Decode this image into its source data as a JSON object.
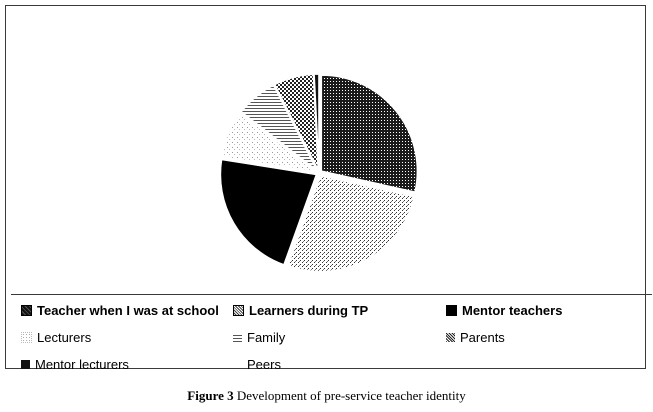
{
  "chart_data": {
    "type": "pie",
    "title": "",
    "slices": [
      {
        "label": "Teacher when I was at school",
        "value": 28.5,
        "pattern": "dark-dots",
        "legend_bold": true
      },
      {
        "label": "Learners during TP",
        "value": 27.0,
        "pattern": "light-dots",
        "legend_bold": true
      },
      {
        "label": "Mentor teachers",
        "value": 22.0,
        "pattern": "solid-black",
        "legend_bold": true
      },
      {
        "label": "Lecturers",
        "value": 8.0,
        "pattern": "sparse-dots",
        "legend_bold": false
      },
      {
        "label": "Family",
        "value": 7.0,
        "pattern": "horizontal-lines",
        "legend_bold": false
      },
      {
        "label": "Parents",
        "value": 6.7,
        "pattern": "checker",
        "legend_bold": false
      },
      {
        "label": "Mentor lecturers",
        "value": 0.8,
        "pattern": "solid-dark",
        "legend_bold": false
      },
      {
        "label": "Peers",
        "value": 0.0,
        "pattern": "none",
        "legend_bold": false
      }
    ],
    "legend_placement": "bottom"
  },
  "caption": {
    "label": "Figure 3",
    "text": " Development of pre-service teacher identity"
  }
}
